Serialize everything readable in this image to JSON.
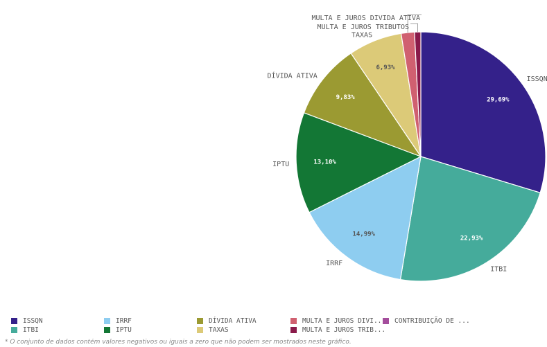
{
  "chart_data": {
    "type": "pie",
    "slices": [
      {
        "label": "ISSQN",
        "value": 29.69,
        "pct_label": "29,69%",
        "color": "#34218a"
      },
      {
        "label": "ITBI",
        "value": 22.93,
        "pct_label": "22,93%",
        "color": "#45ab9b"
      },
      {
        "label": "IRRF",
        "value": 14.99,
        "pct_label": "14,99%",
        "color": "#8ecdf0"
      },
      {
        "label": "IPTU",
        "value": 13.1,
        "pct_label": "13,10%",
        "color": "#137735"
      },
      {
        "label": "DÍVIDA ATIVA",
        "value": 9.83,
        "pct_label": "9,83%",
        "color": "#9b9a32"
      },
      {
        "label": "TAXAS",
        "value": 6.93,
        "pct_label": "6,93%",
        "color": "#dcca78"
      },
      {
        "label": "MULTA E JUROS DIVIDA ATIVA",
        "value": 1.72,
        "pct_label": "",
        "color": "#d06070"
      },
      {
        "label": "MULTA E JUROS TRIBUTOS",
        "value": 0.81,
        "pct_label": "",
        "color": "#8a1a4a"
      }
    ],
    "legend": [
      {
        "label": "ISSQN",
        "color": "#34218a"
      },
      {
        "label": "ITBI",
        "color": "#45ab9b"
      },
      {
        "label": "IRRF",
        "color": "#8ecdf0"
      },
      {
        "label": "IPTU",
        "color": "#137735"
      },
      {
        "label": "DÍVIDA ATIVA",
        "color": "#9b9a32"
      },
      {
        "label": "TAXAS",
        "color": "#dcca78"
      },
      {
        "label": "MULTA E JUROS DIVI...",
        "color": "#d06070"
      },
      {
        "label": "MULTA E JUROS TRIB...",
        "color": "#8a1a4a"
      },
      {
        "label": "CONTRIBUIÇÃO DE ...",
        "color": "#a44d9c"
      }
    ],
    "footnote": "* O conjunto de dados contém valores negativos ou iguais a zero que não podem ser mostrados neste gráfico."
  }
}
